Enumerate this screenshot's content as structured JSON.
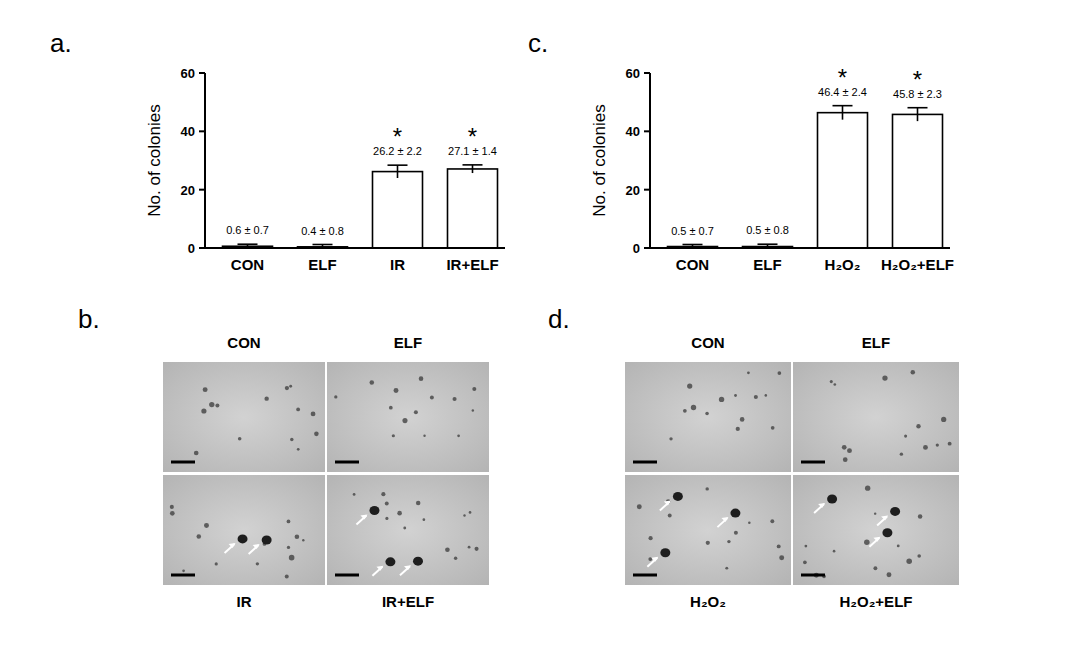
{
  "chart_data": [
    {
      "type": "bar",
      "title": "a.",
      "y_label": "No. of colonies",
      "categories": [
        "CON",
        "ELF",
        "IR",
        "IR+ELF"
      ],
      "values": [
        0.6,
        0.4,
        26.2,
        27.1
      ],
      "errors": [
        0.7,
        0.8,
        2.2,
        1.4
      ],
      "value_labels": [
        "0.6 ± 0.7",
        "0.4 ± 0.8",
        "26.2 ± 2.2",
        "27.1 ± 1.4"
      ],
      "data_labels": true,
      "annotations": [
        {
          "x": "IR",
          "text": "*"
        },
        {
          "x": "IR+ELF",
          "text": "*"
        }
      ],
      "color": "#ffffff",
      "ylim": [
        0,
        60
      ],
      "yticks": [
        0,
        20,
        40,
        60
      ],
      "grid": false
    },
    {
      "type": "bar",
      "title": "c.",
      "y_label": "No. of colonies",
      "categories": [
        "CON",
        "ELF",
        "H₂O₂",
        "H₂O₂+ELF"
      ],
      "values": [
        0.5,
        0.5,
        46.4,
        45.8
      ],
      "errors": [
        0.7,
        0.8,
        2.4,
        2.3
      ],
      "value_labels": [
        "0.5 ± 0.7",
        "0.5 ± 0.8",
        "46.4 ± 2.4",
        "45.8 ± 2.3"
      ],
      "data_labels": true,
      "annotations": [
        {
          "x": "H₂O₂",
          "text": "*"
        },
        {
          "x": "H₂O₂+ELF",
          "text": "*"
        }
      ],
      "color": "#ffffff",
      "ylim": [
        0,
        60
      ],
      "yticks": [
        0,
        20,
        40,
        60
      ],
      "grid": false
    }
  ],
  "micrographs": [
    {
      "title": "b.",
      "labels": [
        "CON",
        "ELF",
        "IR",
        "IR+ELF"
      ]
    },
    {
      "title": "d.",
      "labels": [
        "CON",
        "ELF",
        "H₂O₂",
        "H₂O₂+ELF"
      ]
    }
  ]
}
